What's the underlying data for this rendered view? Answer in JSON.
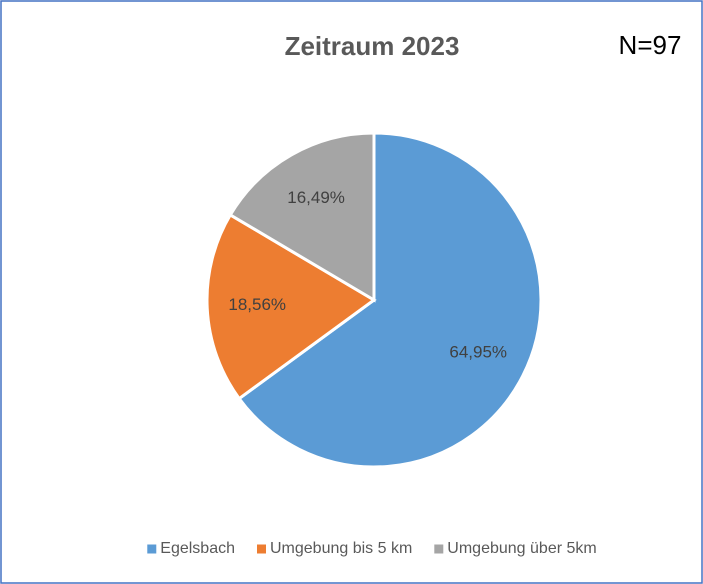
{
  "chart_data": {
    "type": "pie",
    "title": "Zeitraum 2023",
    "annotation": "N=97",
    "categories": [
      "Egelsbach",
      "Umgebung bis 5 km",
      "Umgebung über 5km"
    ],
    "values": [
      64.95,
      18.56,
      16.49
    ],
    "value_labels": [
      "64,95%",
      "18,56%",
      "16,49%"
    ],
    "colors": [
      "#5b9bd5",
      "#ed7d31",
      "#a5a5a5"
    ],
    "legend": "bottom"
  }
}
